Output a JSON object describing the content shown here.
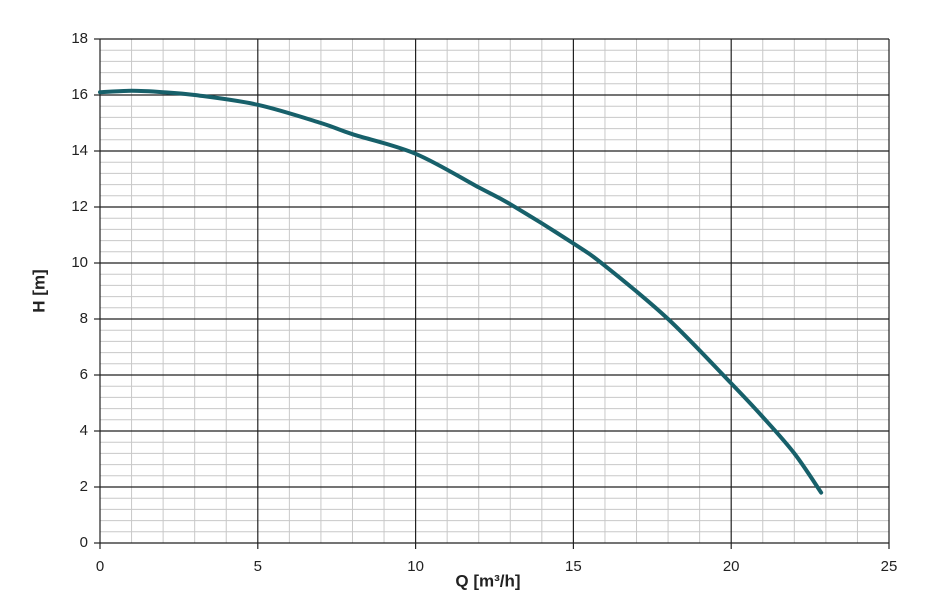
{
  "chart_data": {
    "type": "line",
    "x_label": "Q [m³/h]",
    "y_label": "H [m]",
    "x": [
      0,
      1,
      2,
      3,
      5,
      7,
      8,
      10,
      12,
      13,
      15,
      16,
      18,
      20,
      21,
      22,
      22.85
    ],
    "series": [
      {
        "color": "#17606a",
        "values": [
          16.1,
          16.15,
          16.1,
          16.0,
          15.65,
          15.0,
          14.6,
          13.9,
          12.7,
          12.1,
          10.7,
          9.9,
          8.0,
          5.7,
          4.5,
          3.2,
          1.8
        ]
      }
    ],
    "xlim": [
      0,
      25
    ],
    "ylim": [
      0,
      18
    ],
    "xticks": [
      0,
      5,
      10,
      15,
      20,
      25
    ],
    "yticks": [
      0,
      2,
      4,
      6,
      8,
      10,
      12,
      14,
      16,
      18
    ],
    "xminorticks": [
      1,
      2,
      3,
      4,
      6,
      7,
      8,
      9,
      11,
      12,
      13,
      14,
      16,
      17,
      18,
      19,
      21,
      22,
      23,
      24
    ],
    "yminorticks": [
      0.4,
      0.8,
      1.2,
      1.6,
      2.4,
      2.8,
      3.2,
      3.6,
      4.4,
      4.8,
      5.2,
      5.6,
      6.4,
      6.8,
      7.2,
      7.6,
      8.4,
      8.8,
      9.2,
      9.6,
      10.4,
      10.8,
      11.2,
      11.6,
      12.4,
      12.8,
      13.2,
      13.6,
      14.4,
      14.8,
      15.2,
      15.6,
      16.4,
      16.8,
      17.2,
      17.6
    ],
    "grid": true
  }
}
